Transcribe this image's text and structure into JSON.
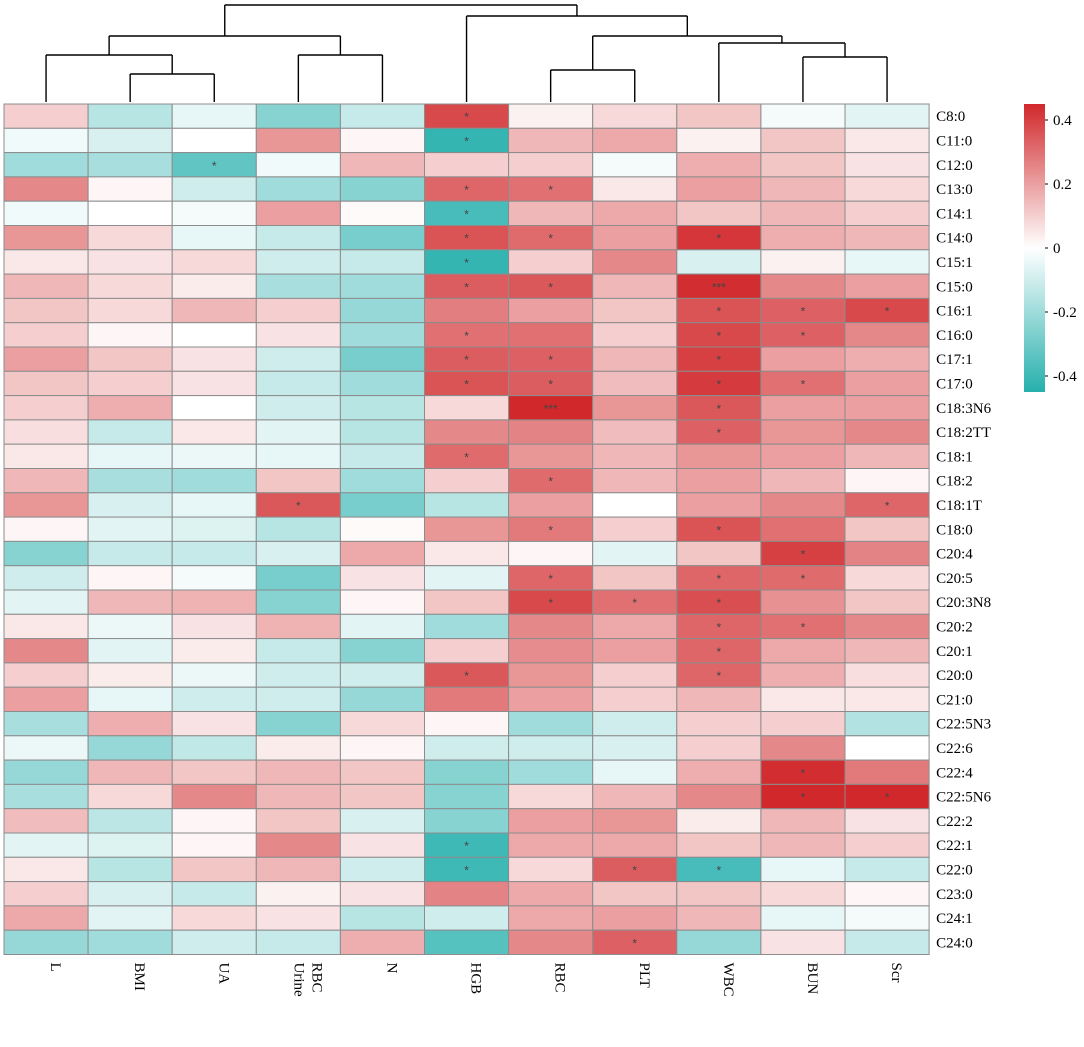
{
  "chart_data": {
    "type": "heatmap",
    "title": "",
    "columns": [
      "L",
      "BMI",
      "UA",
      "Urine RBC",
      "N",
      "HGB",
      "RBC",
      "PLT",
      "WBC",
      "BUN",
      "Scr"
    ],
    "rows": [
      "C8:0",
      "C11:0",
      "C12:0",
      "C13:0",
      "C14:1",
      "C14:0",
      "C15:1",
      "C15:0",
      "C16:1",
      "C16:0",
      "C17:1",
      "C17:0",
      "C18:3N6",
      "C18:2TT",
      "C18:1",
      "C18:2",
      "C18:1T",
      "C18:0",
      "C20:4",
      "C20:5",
      "C20:3N8",
      "C20:2",
      "C20:1",
      "C20:0",
      "C21:0",
      "C22:5N3",
      "C22:6",
      "C22:4",
      "C22:5N6",
      "C22:2",
      "C22:1",
      "C22:0",
      "C23:0",
      "C24:1",
      "C24:0"
    ],
    "values": [
      [
        0.1,
        -0.15,
        -0.05,
        -0.25,
        -0.12,
        0.38,
        0.03,
        0.08,
        0.12,
        -0.02,
        -0.06
      ],
      [
        -0.03,
        -0.08,
        0.0,
        0.22,
        0.02,
        -0.42,
        0.15,
        0.18,
        0.03,
        0.12,
        0.05
      ],
      [
        -0.2,
        -0.18,
        -0.33,
        -0.03,
        0.15,
        0.1,
        0.1,
        -0.02,
        0.17,
        0.12,
        0.06
      ],
      [
        0.25,
        0.02,
        -0.1,
        -0.2,
        -0.25,
        0.32,
        0.3,
        0.05,
        0.2,
        0.15,
        0.08
      ],
      [
        -0.03,
        0.0,
        -0.02,
        0.2,
        0.01,
        -0.38,
        0.15,
        0.18,
        0.12,
        0.15,
        0.1
      ],
      [
        0.22,
        0.08,
        -0.05,
        -0.12,
        -0.28,
        0.36,
        0.31,
        0.2,
        0.42,
        0.17,
        0.15
      ],
      [
        0.05,
        0.06,
        0.08,
        -0.1,
        -0.12,
        -0.42,
        0.1,
        0.25,
        -0.08,
        0.03,
        -0.05
      ],
      [
        0.15,
        0.08,
        0.04,
        -0.18,
        -0.2,
        0.34,
        0.35,
        0.15,
        0.44,
        0.25,
        0.2
      ],
      [
        0.12,
        0.08,
        0.15,
        0.1,
        -0.22,
        0.27,
        0.2,
        0.12,
        0.36,
        0.33,
        0.38
      ],
      [
        0.1,
        0.02,
        0.0,
        0.06,
        -0.2,
        0.3,
        0.3,
        0.1,
        0.38,
        0.33,
        0.25
      ],
      [
        0.2,
        0.12,
        0.06,
        -0.1,
        -0.28,
        0.34,
        0.33,
        0.15,
        0.4,
        0.2,
        0.17
      ],
      [
        0.12,
        0.1,
        0.06,
        -0.12,
        -0.2,
        0.36,
        0.34,
        0.14,
        0.41,
        0.3,
        0.2
      ],
      [
        0.1,
        0.17,
        0.0,
        -0.1,
        -0.15,
        0.08,
        0.45,
        0.22,
        0.35,
        0.2,
        0.2
      ],
      [
        0.07,
        -0.12,
        0.05,
        -0.06,
        -0.15,
        0.25,
        0.26,
        0.14,
        0.33,
        0.22,
        0.25
      ],
      [
        0.05,
        -0.05,
        -0.04,
        -0.05,
        -0.12,
        0.31,
        0.22,
        0.15,
        0.22,
        0.2,
        0.15
      ],
      [
        0.15,
        -0.18,
        -0.2,
        0.12,
        -0.2,
        0.1,
        0.31,
        0.15,
        0.2,
        0.15,
        0.02
      ],
      [
        0.22,
        -0.08,
        -0.05,
        0.35,
        -0.28,
        -0.15,
        0.2,
        0.0,
        0.2,
        0.25,
        0.32
      ],
      [
        0.02,
        -0.06,
        -0.07,
        -0.15,
        0.01,
        0.22,
        0.28,
        0.1,
        0.36,
        0.3,
        0.12
      ],
      [
        -0.25,
        -0.12,
        -0.12,
        -0.08,
        0.18,
        0.05,
        0.02,
        -0.06,
        0.12,
        0.4,
        0.26
      ],
      [
        -0.1,
        0.02,
        -0.02,
        -0.28,
        0.06,
        -0.06,
        0.32,
        0.12,
        0.32,
        0.31,
        0.08
      ],
      [
        -0.06,
        0.15,
        0.16,
        -0.25,
        0.02,
        0.12,
        0.38,
        0.3,
        0.37,
        0.23,
        0.12
      ],
      [
        0.05,
        -0.04,
        0.06,
        0.16,
        -0.06,
        -0.2,
        0.25,
        0.18,
        0.32,
        0.3,
        0.25
      ],
      [
        0.25,
        -0.06,
        0.04,
        -0.12,
        -0.25,
        0.1,
        0.24,
        0.2,
        0.32,
        0.18,
        0.15
      ],
      [
        0.1,
        0.04,
        -0.04,
        -0.1,
        -0.1,
        0.35,
        0.22,
        0.1,
        0.32,
        0.17,
        0.07
      ],
      [
        0.2,
        -0.05,
        -0.1,
        -0.1,
        -0.22,
        0.28,
        0.2,
        0.1,
        0.15,
        0.05,
        0.05
      ],
      [
        -0.18,
        0.17,
        0.06,
        -0.25,
        0.08,
        0.02,
        -0.2,
        -0.1,
        0.1,
        0.1,
        -0.16
      ],
      [
        -0.04,
        -0.22,
        -0.13,
        0.04,
        0.02,
        -0.1,
        -0.1,
        -0.08,
        0.1,
        0.25,
        0.0
      ],
      [
        -0.22,
        0.15,
        0.12,
        0.15,
        0.12,
        -0.25,
        -0.2,
        -0.05,
        0.17,
        0.44,
        0.28
      ],
      [
        -0.18,
        0.08,
        0.25,
        0.15,
        0.12,
        -0.25,
        0.08,
        0.15,
        0.25,
        0.45,
        0.48
      ],
      [
        0.14,
        -0.14,
        0.02,
        0.12,
        -0.08,
        -0.25,
        0.2,
        0.22,
        0.04,
        0.15,
        0.06
      ],
      [
        -0.06,
        -0.07,
        0.02,
        0.25,
        0.06,
        -0.4,
        0.18,
        0.18,
        0.12,
        0.15,
        0.1
      ],
      [
        0.05,
        -0.15,
        0.12,
        0.15,
        -0.1,
        -0.4,
        0.08,
        0.34,
        -0.38,
        -0.05,
        -0.12
      ],
      [
        0.1,
        -0.08,
        -0.12,
        0.03,
        0.06,
        0.26,
        0.18,
        0.12,
        0.12,
        0.08,
        0.02
      ],
      [
        0.18,
        -0.06,
        0.08,
        0.06,
        -0.15,
        -0.1,
        0.18,
        0.2,
        0.15,
        -0.05,
        -0.02
      ],
      [
        -0.22,
        -0.2,
        -0.1,
        -0.12,
        0.17,
        -0.35,
        0.25,
        0.33,
        -0.22,
        0.06,
        -0.12
      ]
    ],
    "stars": [
      [
        "",
        "",
        "",
        "",
        "",
        "*",
        "",
        "",
        "",
        "",
        ""
      ],
      [
        "",
        "",
        "",
        "",
        "",
        "*",
        "",
        "",
        "",
        "",
        ""
      ],
      [
        "",
        "",
        "*",
        "",
        "",
        "",
        "",
        "",
        "",
        "",
        ""
      ],
      [
        "",
        "",
        "",
        "",
        "",
        "*",
        "*",
        "",
        "",
        "",
        ""
      ],
      [
        "",
        "",
        "",
        "",
        "",
        "*",
        "",
        "",
        "",
        "",
        ""
      ],
      [
        "",
        "",
        "",
        "",
        "",
        "*",
        "*",
        "",
        "*",
        "",
        ""
      ],
      [
        "",
        "",
        "",
        "",
        "",
        "*",
        "",
        "",
        "",
        "",
        ""
      ],
      [
        "",
        "",
        "",
        "",
        "",
        "*",
        "*",
        "",
        "***",
        "",
        ""
      ],
      [
        "",
        "",
        "",
        "",
        "",
        "",
        "",
        "",
        "*",
        "*",
        "*"
      ],
      [
        "",
        "",
        "",
        "",
        "",
        "*",
        "",
        "",
        "*",
        "*",
        ""
      ],
      [
        "",
        "",
        "",
        "",
        "",
        "*",
        "*",
        "",
        "*",
        "",
        ""
      ],
      [
        "",
        "",
        "",
        "",
        "",
        "*",
        "*",
        "",
        "*",
        "*",
        ""
      ],
      [
        "",
        "",
        "",
        "",
        "",
        "",
        "***",
        "",
        "*",
        "",
        ""
      ],
      [
        "",
        "",
        "",
        "",
        "",
        "",
        "",
        "",
        "*",
        "",
        ""
      ],
      [
        "",
        "",
        "",
        "",
        "",
        "*",
        "",
        "",
        "",
        "",
        ""
      ],
      [
        "",
        "",
        "",
        "",
        "",
        "",
        "*",
        "",
        "",
        "",
        ""
      ],
      [
        "",
        "",
        "",
        "*",
        "",
        "",
        "",
        "",
        "",
        "",
        "*"
      ],
      [
        "",
        "",
        "",
        "",
        "",
        "",
        "*",
        "",
        "*",
        "",
        ""
      ],
      [
        "",
        "",
        "",
        "",
        "",
        "",
        "",
        "",
        "",
        "*",
        ""
      ],
      [
        "",
        "",
        "",
        "",
        "",
        "",
        "*",
        "",
        "*",
        "*",
        ""
      ],
      [
        "",
        "",
        "",
        "",
        "",
        "",
        "*",
        "*",
        "*",
        "",
        ""
      ],
      [
        "",
        "",
        "",
        "",
        "",
        "",
        "",
        "",
        "*",
        "*",
        ""
      ],
      [
        "",
        "",
        "",
        "",
        "",
        "",
        "",
        "",
        "*",
        "",
        ""
      ],
      [
        "",
        "",
        "",
        "",
        "",
        "*",
        "",
        "",
        "*",
        "",
        ""
      ],
      [
        "",
        "",
        "",
        "",
        "",
        "",
        "",
        "",
        "",
        "",
        ""
      ],
      [
        "",
        "",
        "",
        "",
        "",
        "",
        "",
        "",
        "",
        "",
        ""
      ],
      [
        "",
        "",
        "",
        "",
        "",
        "",
        "",
        "",
        "",
        "",
        ""
      ],
      [
        "",
        "",
        "",
        "",
        "",
        "",
        "",
        "",
        "",
        "*",
        ""
      ],
      [
        "",
        "",
        "",
        "",
        "",
        "",
        "",
        "",
        "",
        "*",
        "*"
      ],
      [
        "",
        "",
        "",
        "",
        "",
        "",
        "",
        "",
        "",
        "",
        ""
      ],
      [
        "",
        "",
        "",
        "",
        "",
        "*",
        "",
        "",
        "",
        "",
        ""
      ],
      [
        "",
        "",
        "",
        "",
        "",
        "*",
        "",
        "*",
        "*",
        "",
        ""
      ],
      [
        "",
        "",
        "",
        "",
        "",
        "",
        "",
        "",
        "",
        "",
        ""
      ],
      [
        "",
        "",
        "",
        "",
        "",
        "",
        "",
        "",
        "",
        "",
        ""
      ],
      [
        "",
        "",
        "",
        "",
        "",
        "",
        "",
        "*",
        "",
        "",
        ""
      ]
    ],
    "scale": {
      "min": -0.45,
      "max": 0.45,
      "ticks": [
        "0.4",
        "0.2",
        "0",
        "-0.2",
        "-0.4"
      ],
      "tick_values": [
        0.4,
        0.2,
        0,
        -0.2,
        -0.4
      ]
    },
    "colors": {
      "low": "#26b0ad",
      "mid": "#ffffff",
      "high": "#d1282b"
    },
    "dendrogram": "column clustering: ((L,(BMI,UA)),(Urine RBC,N)),(HGB,((RBC,PLT),(WBC,(BUN,Scr))))"
  }
}
